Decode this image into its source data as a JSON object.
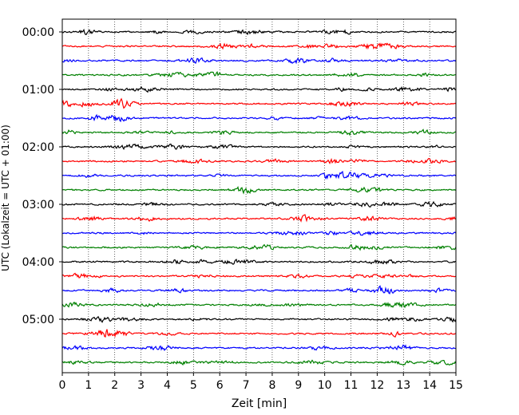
{
  "chart_data": {
    "type": "line",
    "title": "",
    "xlabel": "Zeit  [min]",
    "ylabel": "UTC (Lokalzeit = UTC + 01:00)",
    "xlim": [
      0,
      15
    ],
    "x_ticks": [
      "0",
      "1",
      "2",
      "3",
      "4",
      "5",
      "6",
      "7",
      "8",
      "9",
      "10",
      "11",
      "12",
      "13",
      "14",
      "15"
    ],
    "y_tick_labels": [
      "00:00",
      "01:00",
      "02:00",
      "03:00",
      "04:00",
      "05:00"
    ],
    "grid": "vertical dotted",
    "trace_interval_min": 15,
    "trace_count": 24,
    "trace_color_cycle": [
      "#000000",
      "#ff0000",
      "#0000ff",
      "#008000"
    ],
    "series": [
      {
        "start": "00:00",
        "color": "#000000"
      },
      {
        "start": "00:15",
        "color": "#ff0000"
      },
      {
        "start": "00:30",
        "color": "#0000ff"
      },
      {
        "start": "00:45",
        "color": "#008000"
      },
      {
        "start": "01:00",
        "color": "#000000"
      },
      {
        "start": "01:15",
        "color": "#ff0000"
      },
      {
        "start": "01:30",
        "color": "#0000ff"
      },
      {
        "start": "01:45",
        "color": "#008000"
      },
      {
        "start": "02:00",
        "color": "#000000"
      },
      {
        "start": "02:15",
        "color": "#ff0000"
      },
      {
        "start": "02:30",
        "color": "#0000ff"
      },
      {
        "start": "02:45",
        "color": "#008000"
      },
      {
        "start": "03:00",
        "color": "#000000"
      },
      {
        "start": "03:15",
        "color": "#ff0000"
      },
      {
        "start": "03:30",
        "color": "#0000ff"
      },
      {
        "start": "03:45",
        "color": "#008000"
      },
      {
        "start": "04:00",
        "color": "#000000"
      },
      {
        "start": "04:15",
        "color": "#ff0000"
      },
      {
        "start": "04:30",
        "color": "#0000ff"
      },
      {
        "start": "04:45",
        "color": "#008000"
      },
      {
        "start": "05:00",
        "color": "#000000"
      },
      {
        "start": "05:15",
        "color": "#ff0000"
      },
      {
        "start": "05:30",
        "color": "#0000ff"
      },
      {
        "start": "05:45",
        "color": "#008000"
      }
    ]
  }
}
